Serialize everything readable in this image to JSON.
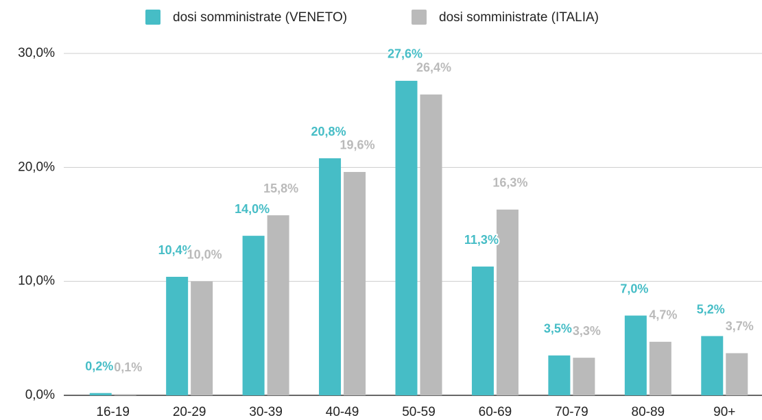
{
  "chart_data": {
    "type": "bar",
    "categories": [
      "16-19",
      "20-29",
      "30-39",
      "40-49",
      "50-59",
      "60-69",
      "70-79",
      "80-89",
      "90+"
    ],
    "series": [
      {
        "name": "dosi somministrate (VENETO)",
        "color": "#46bdc6",
        "values": [
          0.2,
          10.4,
          14.0,
          20.8,
          27.6,
          11.3,
          3.5,
          7.0,
          5.2
        ],
        "value_labels": [
          "0,2%",
          "10,4%",
          "14,0%",
          "20,8%",
          "27,6%",
          "11,3%",
          "3,5%",
          "7,0%",
          "5,2%"
        ]
      },
      {
        "name": "dosi somministrate (ITALIA)",
        "color": "#bababa",
        "values": [
          0.1,
          10.0,
          15.8,
          19.6,
          26.4,
          16.3,
          3.3,
          4.7,
          3.7
        ],
        "value_labels": [
          "0,1%",
          "10,0%",
          "15,8%",
          "19,6%",
          "26,4%",
          "16,3%",
          "3,3%",
          "4,7%",
          "3,7%"
        ]
      }
    ],
    "ylim": [
      0,
      30
    ],
    "yticks": [
      {
        "value": 0,
        "label": "0,0%"
      },
      {
        "value": 10,
        "label": "10,0%"
      },
      {
        "value": 20,
        "label": "20,0%"
      },
      {
        "value": 30,
        "label": "30,0%"
      }
    ],
    "grid": true,
    "legend": "top"
  }
}
